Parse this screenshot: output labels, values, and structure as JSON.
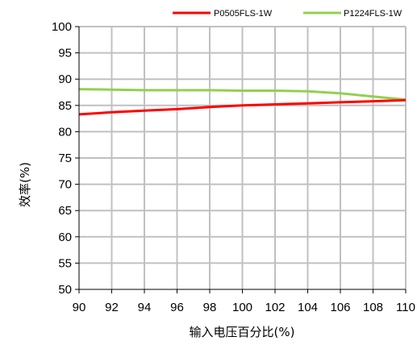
{
  "chart_data": {
    "type": "line",
    "title": "",
    "xlabel": "输入电压百分比(%)",
    "ylabel": "效率(%)",
    "xlim": [
      90,
      110
    ],
    "ylim": [
      50,
      100
    ],
    "xticks": [
      90,
      92,
      94,
      96,
      98,
      100,
      102,
      104,
      106,
      108,
      110
    ],
    "yticks": [
      50,
      55,
      60,
      65,
      70,
      75,
      80,
      85,
      90,
      95,
      100
    ],
    "grid": true,
    "legend_position": "top-right",
    "series": [
      {
        "name": "P0505FLS-1W",
        "color": "#ff0000",
        "x": [
          90,
          92,
          94,
          96,
          98,
          100,
          102,
          104,
          106,
          108,
          110
        ],
        "y": [
          83.3,
          83.7,
          84.0,
          84.3,
          84.7,
          85.0,
          85.2,
          85.4,
          85.6,
          85.8,
          86.0
        ]
      },
      {
        "name": "P1224FLS-1W",
        "color": "#92d050",
        "x": [
          90,
          92,
          94,
          96,
          98,
          100,
          102,
          104,
          106,
          108,
          110
        ],
        "y": [
          88.1,
          88.0,
          87.9,
          87.9,
          87.9,
          87.8,
          87.8,
          87.7,
          87.3,
          86.7,
          86.1
        ]
      }
    ]
  }
}
